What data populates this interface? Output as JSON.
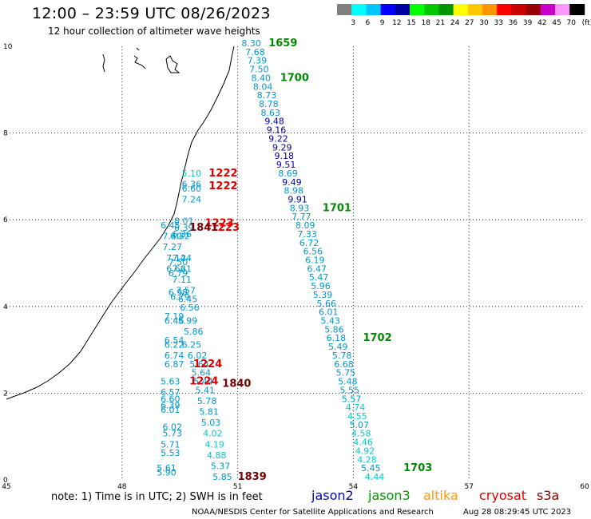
{
  "title": "12:00 – 23:59 UTC 08/26/2023",
  "subtitle": "12 hour collection of altimeter wave heights",
  "legend": {
    "unit": "(ft)",
    "ticks": [
      "3",
      "6",
      "9",
      "12",
      "15",
      "18",
      "21",
      "24",
      "27",
      "30",
      "33",
      "36",
      "39",
      "42",
      "45",
      "70"
    ],
    "colors": [
      "#808080",
      "#00ffff",
      "#00c8ff",
      "#0000ff",
      "#0000a0",
      "#00ff00",
      "#00c800",
      "#009600",
      "#ffff00",
      "#ffc800",
      "#ff9600",
      "#ff0000",
      "#c80000",
      "#960000",
      "#c800c8",
      "#ff96ff",
      "#000000"
    ]
  },
  "axes": {
    "x_ticks": [
      "45",
      "48",
      "51",
      "54",
      "57",
      "60"
    ],
    "y_ticks": [
      "0",
      "2",
      "4",
      "6",
      "8",
      "10"
    ]
  },
  "labels": [
    {
      "t": "8.30",
      "lon": 51.1,
      "lat": 10.0,
      "c": "#0099cc"
    },
    {
      "t": "7.68",
      "lon": 51.2,
      "lat": 9.8,
      "c": "#0099cc"
    },
    {
      "t": "7.39",
      "lon": 51.25,
      "lat": 9.6,
      "c": "#0099cc"
    },
    {
      "t": "7.50",
      "lon": 51.3,
      "lat": 9.4,
      "c": "#0099cc"
    },
    {
      "t": "8.40",
      "lon": 51.35,
      "lat": 9.2,
      "c": "#0099cc"
    },
    {
      "t": "8.04",
      "lon": 51.4,
      "lat": 9.0,
      "c": "#0099cc"
    },
    {
      "t": "8.73",
      "lon": 51.5,
      "lat": 8.8,
      "c": "#0099cc"
    },
    {
      "t": "8.78",
      "lon": 51.55,
      "lat": 8.6,
      "c": "#0099cc"
    },
    {
      "t": "8.63",
      "lon": 51.6,
      "lat": 8.4,
      "c": "#0099cc"
    },
    {
      "t": "9.48",
      "lon": 51.7,
      "lat": 8.2,
      "c": "#000099"
    },
    {
      "t": "9.16",
      "lon": 51.75,
      "lat": 8.0,
      "c": "#000099"
    },
    {
      "t": "9.22",
      "lon": 51.8,
      "lat": 7.8,
      "c": "#000099"
    },
    {
      "t": "9.29",
      "lon": 51.9,
      "lat": 7.6,
      "c": "#000099"
    },
    {
      "t": "9.18",
      "lon": 51.95,
      "lat": 7.4,
      "c": "#000099"
    },
    {
      "t": "9.51",
      "lon": 52.0,
      "lat": 7.2,
      "c": "#000099"
    },
    {
      "t": "8.69",
      "lon": 52.05,
      "lat": 7.0,
      "c": "#0099cc"
    },
    {
      "t": "9.49",
      "lon": 52.15,
      "lat": 6.8,
      "c": "#000099"
    },
    {
      "t": "8.98",
      "lon": 52.2,
      "lat": 6.6,
      "c": "#0099cc"
    },
    {
      "t": "9.91",
      "lon": 52.3,
      "lat": 6.4,
      "c": "#000099"
    },
    {
      "t": "8.93",
      "lon": 52.35,
      "lat": 6.2,
      "c": "#0099cc"
    },
    {
      "t": "7.77",
      "lon": 52.4,
      "lat": 6.0,
      "c": "#0099cc"
    },
    {
      "t": "8.09",
      "lon": 52.5,
      "lat": 5.8,
      "c": "#0099cc"
    },
    {
      "t": "7.33",
      "lon": 52.55,
      "lat": 5.6,
      "c": "#0099cc"
    },
    {
      "t": "6.72",
      "lon": 52.6,
      "lat": 5.4,
      "c": "#0099cc"
    },
    {
      "t": "6.56",
      "lon": 52.7,
      "lat": 5.2,
      "c": "#0099cc"
    },
    {
      "t": "6.19",
      "lon": 52.75,
      "lat": 5.0,
      "c": "#0099cc"
    },
    {
      "t": "6.47",
      "lon": 52.8,
      "lat": 4.8,
      "c": "#0099cc"
    },
    {
      "t": "5.47",
      "lon": 52.85,
      "lat": 4.6,
      "c": "#0099cc"
    },
    {
      "t": "5.96",
      "lon": 52.9,
      "lat": 4.4,
      "c": "#0099cc"
    },
    {
      "t": "5.39",
      "lon": 52.95,
      "lat": 4.2,
      "c": "#0099cc"
    },
    {
      "t": "5.66",
      "lon": 53.05,
      "lat": 4.0,
      "c": "#0099cc"
    },
    {
      "t": "6.01",
      "lon": 53.1,
      "lat": 3.8,
      "c": "#0099cc"
    },
    {
      "t": "5.43",
      "lon": 53.15,
      "lat": 3.6,
      "c": "#0099cc"
    },
    {
      "t": "5.86",
      "lon": 53.25,
      "lat": 3.4,
      "c": "#0099cc"
    },
    {
      "t": "6.18",
      "lon": 53.3,
      "lat": 3.2,
      "c": "#0099cc"
    },
    {
      "t": "5.49",
      "lon": 53.35,
      "lat": 3.0,
      "c": "#0099cc"
    },
    {
      "t": "5.78",
      "lon": 53.45,
      "lat": 2.8,
      "c": "#0099cc"
    },
    {
      "t": "6.68",
      "lon": 53.5,
      "lat": 2.6,
      "c": "#0099cc"
    },
    {
      "t": "5.75",
      "lon": 53.55,
      "lat": 2.4,
      "c": "#0099cc"
    },
    {
      "t": "5.48",
      "lon": 53.6,
      "lat": 2.2,
      "c": "#0099cc"
    },
    {
      "t": "5.55",
      "lon": 53.65,
      "lat": 2.0,
      "c": "#0099cc"
    },
    {
      "t": "5.57",
      "lon": 53.7,
      "lat": 1.8,
      "c": "#0099cc"
    },
    {
      "t": "4.74",
      "lon": 53.8,
      "lat": 1.6,
      "c": "#00cccc"
    },
    {
      "t": "4.55",
      "lon": 53.85,
      "lat": 1.4,
      "c": "#00cccc"
    },
    {
      "t": "5.07",
      "lon": 53.9,
      "lat": 1.2,
      "c": "#0099cc"
    },
    {
      "t": "4.58",
      "lon": 53.95,
      "lat": 1.0,
      "c": "#00cccc"
    },
    {
      "t": "4.46",
      "lon": 54.0,
      "lat": 0.8,
      "c": "#00cccc"
    },
    {
      "t": "4.92",
      "lon": 54.05,
      "lat": 0.6,
      "c": "#00cccc"
    },
    {
      "t": "4.28",
      "lon": 54.1,
      "lat": 0.4,
      "c": "#00cccc"
    },
    {
      "t": "5.45",
      "lon": 54.2,
      "lat": 0.2,
      "c": "#0099cc"
    },
    {
      "t": "4.44",
      "lon": 54.3,
      "lat": 0.0,
      "c": "#00cccc"
    },
    {
      "t": "5.10",
      "lon": 49.55,
      "lat": 7.0,
      "c": "#00cccc"
    },
    {
      "t": "6.36",
      "lon": 49.55,
      "lat": 6.75,
      "c": "#0099cc"
    },
    {
      "t": "6.60",
      "lon": 49.55,
      "lat": 6.65,
      "c": "#0099cc"
    },
    {
      "t": "7.24",
      "lon": 49.55,
      "lat": 6.4,
      "c": "#0099cc"
    },
    {
      "t": "8.01",
      "lon": 49.35,
      "lat": 5.9,
      "c": "#0099cc"
    },
    {
      "t": "6.45",
      "lon": 49.0,
      "lat": 5.8,
      "c": "#0099cc"
    },
    {
      "t": "6.39",
      "lon": 49.35,
      "lat": 5.75,
      "c": "#0099cc"
    },
    {
      "t": "6.36",
      "lon": 49.3,
      "lat": 5.6,
      "c": "#0099cc"
    },
    {
      "t": "7.40",
      "lon": 49.05,
      "lat": 5.55,
      "c": "#0099cc"
    },
    {
      "t": "6.32",
      "lon": 49.25,
      "lat": 5.55,
      "c": "#0099cc"
    },
    {
      "t": "7.27",
      "lon": 49.05,
      "lat": 5.3,
      "c": "#0099cc"
    },
    {
      "t": "7.14",
      "lon": 49.15,
      "lat": 5.05,
      "c": "#0099cc"
    },
    {
      "t": "7.24",
      "lon": 49.3,
      "lat": 5.05,
      "c": "#0099cc"
    },
    {
      "t": "7.50",
      "lon": 49.2,
      "lat": 4.95,
      "c": "#0099cc"
    },
    {
      "t": "6.66",
      "lon": 49.15,
      "lat": 4.8,
      "c": "#0099cc"
    },
    {
      "t": "7.21",
      "lon": 49.3,
      "lat": 4.8,
      "c": "#0099cc"
    },
    {
      "t": "6.79",
      "lon": 49.2,
      "lat": 4.7,
      "c": "#0099cc"
    },
    {
      "t": "7.11",
      "lon": 49.3,
      "lat": 4.55,
      "c": "#0099cc"
    },
    {
      "t": "7.57",
      "lon": 49.4,
      "lat": 4.3,
      "c": "#0099cc"
    },
    {
      "t": "6.98",
      "lon": 49.2,
      "lat": 4.25,
      "c": "#0099cc"
    },
    {
      "t": "6.79",
      "lon": 49.25,
      "lat": 4.15,
      "c": "#0099cc"
    },
    {
      "t": "6.45",
      "lon": 49.45,
      "lat": 4.1,
      "c": "#0099cc"
    },
    {
      "t": "6.56",
      "lon": 49.5,
      "lat": 3.9,
      "c": "#0099cc"
    },
    {
      "t": "7.19",
      "lon": 49.1,
      "lat": 3.7,
      "c": "#0099cc"
    },
    {
      "t": "6.46",
      "lon": 49.1,
      "lat": 3.6,
      "c": "#0099cc"
    },
    {
      "t": "5.99",
      "lon": 49.45,
      "lat": 3.6,
      "c": "#0099cc"
    },
    {
      "t": "5.86",
      "lon": 49.6,
      "lat": 3.35,
      "c": "#0099cc"
    },
    {
      "t": "6.54",
      "lon": 49.1,
      "lat": 3.15,
      "c": "#0099cc"
    },
    {
      "t": "6.22",
      "lon": 49.1,
      "lat": 3.05,
      "c": "#0099cc"
    },
    {
      "t": "6.25",
      "lon": 49.55,
      "lat": 3.05,
      "c": "#0099cc"
    },
    {
      "t": "6.74",
      "lon": 49.1,
      "lat": 2.8,
      "c": "#0099cc"
    },
    {
      "t": "6.02",
      "lon": 49.7,
      "lat": 2.8,
      "c": "#0099cc"
    },
    {
      "t": "6.87",
      "lon": 49.1,
      "lat": 2.6,
      "c": "#0099cc"
    },
    {
      "t": "5.64",
      "lon": 49.75,
      "lat": 2.6,
      "c": "#0099cc"
    },
    {
      "t": "5.64",
      "lon": 49.8,
      "lat": 2.4,
      "c": "#0099cc"
    },
    {
      "t": "5.63",
      "lon": 49.0,
      "lat": 2.2,
      "c": "#0099cc"
    },
    {
      "t": "5.44",
      "lon": 49.85,
      "lat": 2.2,
      "c": "#0099cc"
    },
    {
      "t": "5.41",
      "lon": 49.9,
      "lat": 2.0,
      "c": "#0099cc"
    },
    {
      "t": "6.57",
      "lon": 49.0,
      "lat": 1.95,
      "c": "#0099cc"
    },
    {
      "t": "6.60",
      "lon": 49.0,
      "lat": 1.8,
      "c": "#0099cc"
    },
    {
      "t": "5.78",
      "lon": 49.95,
      "lat": 1.75,
      "c": "#0099cc"
    },
    {
      "t": "6.39",
      "lon": 49.0,
      "lat": 1.65,
      "c": "#0099cc"
    },
    {
      "t": "6.01",
      "lon": 49.0,
      "lat": 1.55,
      "c": "#0099cc"
    },
    {
      "t": "5.81",
      "lon": 50.0,
      "lat": 1.5,
      "c": "#0099cc"
    },
    {
      "t": "5.03",
      "lon": 50.05,
      "lat": 1.25,
      "c": "#0099cc"
    },
    {
      "t": "6.02",
      "lon": 49.05,
      "lat": 1.15,
      "c": "#0099cc"
    },
    {
      "t": "5.73",
      "lon": 49.05,
      "lat": 1.0,
      "c": "#0099cc"
    },
    {
      "t": "4.02",
      "lon": 50.1,
      "lat": 1.0,
      "c": "#00cccc"
    },
    {
      "t": "5.71",
      "lon": 49.0,
      "lat": 0.75,
      "c": "#0099cc"
    },
    {
      "t": "4.19",
      "lon": 50.15,
      "lat": 0.75,
      "c": "#00cccc"
    },
    {
      "t": "5.53",
      "lon": 49.0,
      "lat": 0.55,
      "c": "#0099cc"
    },
    {
      "t": "4.88",
      "lon": 50.2,
      "lat": 0.5,
      "c": "#00cccc"
    },
    {
      "t": "5.37",
      "lon": 50.3,
      "lat": 0.25,
      "c": "#0099cc"
    },
    {
      "t": "5.61",
      "lon": 48.9,
      "lat": 0.2,
      "c": "#0099cc"
    },
    {
      "t": "5.90",
      "lon": 48.9,
      "lat": 0.1,
      "c": "#0099cc"
    },
    {
      "t": "5.85",
      "lon": 50.35,
      "lat": 0.0,
      "c": "#0099cc"
    }
  ],
  "passes": [
    {
      "t": "1659",
      "lon": 51.8,
      "lat": 10.0,
      "c": "#008800"
    },
    {
      "t": "1700",
      "lon": 52.1,
      "lat": 9.2,
      "c": "#008800"
    },
    {
      "t": "1701",
      "lon": 53.2,
      "lat": 6.2,
      "c": "#008800"
    },
    {
      "t": "1702",
      "lon": 54.25,
      "lat": 3.2,
      "c": "#008800"
    },
    {
      "t": "1703",
      "lon": 55.3,
      "lat": 0.2,
      "c": "#008800"
    },
    {
      "t": "1222",
      "lon": 50.25,
      "lat": 7.0,
      "c": "#dd0000"
    },
    {
      "t": "1222",
      "lon": 50.25,
      "lat": 6.7,
      "c": "#dd0000"
    },
    {
      "t": "1223",
      "lon": 50.15,
      "lat": 5.85,
      "c": "#dd0000"
    },
    {
      "t": "1223",
      "lon": 50.3,
      "lat": 5.75,
      "c": "#dd0000"
    },
    {
      "t": "1841",
      "lon": 49.75,
      "lat": 5.75,
      "c": "#770000"
    },
    {
      "t": "1224",
      "lon": 49.85,
      "lat": 2.6,
      "c": "#dd0000"
    },
    {
      "t": "1224",
      "lon": 49.75,
      "lat": 2.2,
      "c": "#dd0000"
    },
    {
      "t": "1840",
      "lon": 50.6,
      "lat": 2.15,
      "c": "#770000"
    },
    {
      "t": "1839",
      "lon": 51.0,
      "lat": 0.0,
      "c": "#770000"
    }
  ],
  "note": "note:  1) Time is in UTC; 2) SWH is in feet",
  "satellites": [
    {
      "name": "jason2",
      "color": "#0000cc"
    },
    {
      "name": "jason3",
      "color": "#009900"
    },
    {
      "name": "altika",
      "color": "#ff9900"
    },
    {
      "name": "cryosat",
      "color": "#dd0000"
    },
    {
      "name": "s3a",
      "color": "#880000"
    }
  ],
  "credit": "NOAA/NESDIS Center for Satellite Applications and Research",
  "timestamp": "Aug 28 08:29:45 UTC 2023"
}
